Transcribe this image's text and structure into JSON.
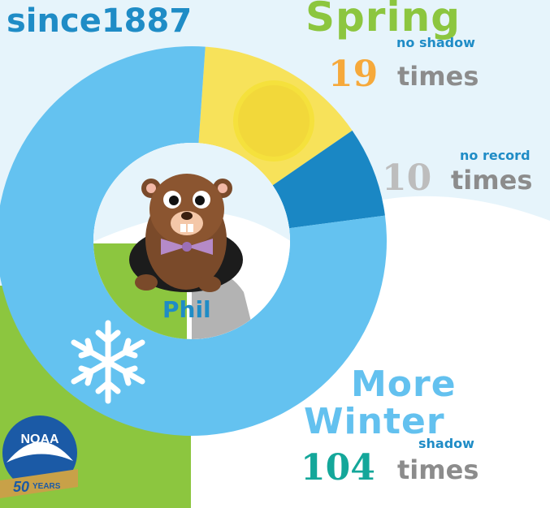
{
  "header": {
    "since_text": "since1887"
  },
  "chart_data": {
    "type": "pie",
    "variant": "donut",
    "total": 133,
    "categories": [
      "Spring",
      "No record",
      "More Winter"
    ],
    "values": [
      19,
      10,
      104
    ],
    "sublabels": [
      "no shadow",
      "no record",
      "shadow"
    ],
    "colors": [
      "#f7e25a",
      "#1a87c4",
      "#64c2f0"
    ],
    "center_label": "Phil",
    "unit": "times"
  },
  "labels": {
    "spring": {
      "title": "Spring",
      "sub": "no shadow",
      "count": "19",
      "unit": "times"
    },
    "no_record": {
      "sub": "no record",
      "count": "10",
      "unit": "times"
    },
    "winter": {
      "title_line1": "More",
      "title_line2": "Winter",
      "sub": "shadow",
      "count": "104",
      "unit": "times"
    }
  },
  "colors": {
    "sky": "#e6f4fb",
    "grass": "#8cc63f",
    "heading_blue": "#1f8cc6",
    "spring_green": "#8cc63f",
    "spring_orange": "#f6a93b",
    "winter_blue": "#63c1ef",
    "winter_teal": "#14a79a",
    "gray_number": "#bdbdbd",
    "gray_times": "#8c8c8c",
    "sun": "#f5e13c"
  },
  "logo": {
    "name": "NOAA",
    "anniversary": "50",
    "years": "YEARS"
  },
  "icons": {
    "sun": "sun-icon",
    "snowflake": "snowflake-icon",
    "groundhog": "groundhog-icon",
    "logo": "noaa-logo"
  }
}
